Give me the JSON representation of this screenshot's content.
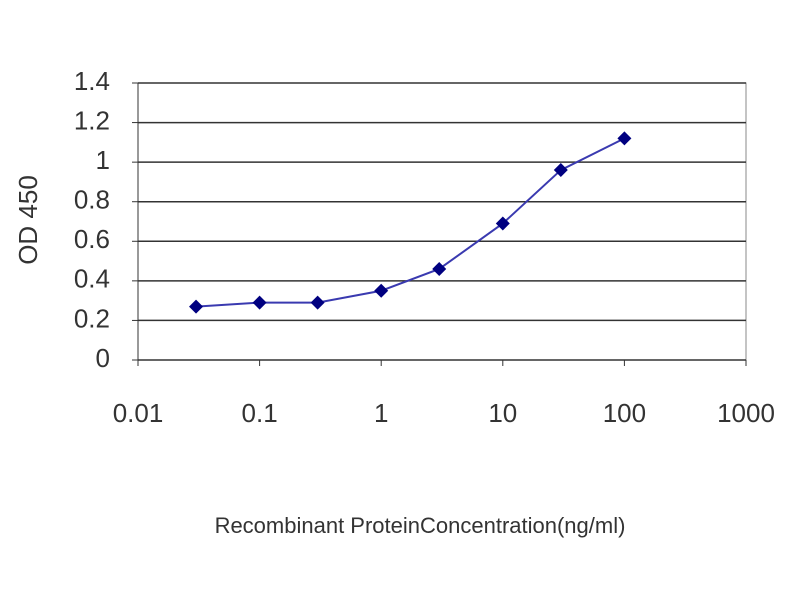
{
  "chart_data": {
    "type": "line",
    "x_label": "Recombinant ProteinConcentration(ng/ml)",
    "y_label": "OD 450",
    "x": [
      0.03,
      0.1,
      0.3,
      1,
      3,
      10,
      30,
      100
    ],
    "values": [
      0.27,
      0.29,
      0.29,
      0.35,
      0.46,
      0.69,
      0.96,
      1.12
    ],
    "color": "#000080",
    "line_color": "#3a3ab0",
    "xscale": "log",
    "xlim": [
      0.01,
      1000
    ],
    "xticks": [
      0.01,
      0.1,
      1,
      10,
      100,
      1000
    ],
    "ylim": [
      0,
      1.4
    ],
    "yticks": [
      0,
      0.2,
      0.4,
      0.6,
      0.8,
      1,
      1.2,
      1.4
    ],
    "grid": true
  }
}
